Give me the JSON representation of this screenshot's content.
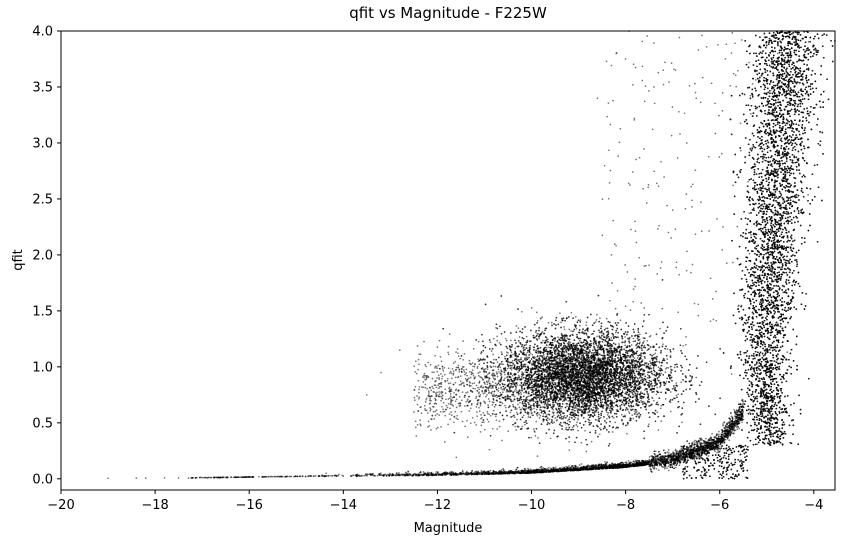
{
  "chart_data": {
    "type": "scatter",
    "title": "qfit vs Magnitude - F225W",
    "xlabel": "Magnitude",
    "ylabel": "qfit",
    "xlim": [
      -20,
      -3.55
    ],
    "ylim": [
      -0.1,
      4.0
    ],
    "x_ticks": [
      -20,
      -18,
      -16,
      -14,
      -12,
      -10,
      -8,
      -6,
      -4
    ],
    "x_tick_labels": [
      "−20",
      "−18",
      "−16",
      "−14",
      "−12",
      "−10",
      "−8",
      "−6",
      "−4"
    ],
    "y_ticks": [
      0.0,
      0.5,
      1.0,
      1.5,
      2.0,
      2.5,
      3.0,
      3.5,
      4.0
    ],
    "y_tick_labels": [
      "0.0",
      "0.5",
      "1.0",
      "1.5",
      "2.0",
      "2.5",
      "3.0",
      "3.5",
      "4.0"
    ],
    "grid": false,
    "point_color": "#000000",
    "point_opacity": 0.55,
    "features": {
      "faint_tail_sample_points": [
        [
          -19.0,
          0.005
        ],
        [
          -18.4,
          0.006
        ],
        [
          -18.2,
          0.006
        ],
        [
          -17.8,
          0.008
        ],
        [
          -17.5,
          0.008
        ],
        [
          -17.2,
          0.009
        ],
        [
          -16.9,
          0.01
        ],
        [
          -16.6,
          0.012
        ],
        [
          -16.3,
          0.013
        ],
        [
          -16.0,
          0.014
        ],
        [
          -15.6,
          0.016
        ],
        [
          -15.2,
          0.018
        ],
        [
          -14.8,
          0.02
        ],
        [
          -14.4,
          0.022
        ],
        [
          -14.0,
          0.025
        ]
      ],
      "cluster": {
        "center_x": -8.9,
        "center_y": 0.92,
        "spread_x": 1.1,
        "spread_y": 0.2
      },
      "main_sequence_curve": [
        [
          -14.0,
          0.02
        ],
        [
          -12.0,
          0.03
        ],
        [
          -10.0,
          0.05
        ],
        [
          -8.0,
          0.1
        ],
        [
          -7.0,
          0.15
        ],
        [
          -6.0,
          0.3
        ],
        [
          -5.5,
          0.55
        ],
        [
          -5.2,
          1.0
        ],
        [
          -5.0,
          1.5
        ],
        [
          -4.85,
          2.0
        ],
        [
          -4.75,
          2.5
        ],
        [
          -4.65,
          3.0
        ],
        [
          -4.55,
          3.5
        ],
        [
          -4.45,
          4.0
        ]
      ],
      "outlier_points": [
        [
          -13.5,
          0.75
        ],
        [
          -13.2,
          0.95
        ],
        [
          -12.8,
          1.15
        ],
        [
          -8.2,
          3.8
        ],
        [
          -8.0,
          3.75
        ],
        [
          -8.6,
          3.4
        ],
        [
          -7.4,
          3.5
        ],
        [
          -7.2,
          3.65
        ],
        [
          -7.8,
          2.3
        ],
        [
          -8.3,
          2.0
        ],
        [
          -7.6,
          1.9
        ],
        [
          -7.0,
          2.4
        ],
        [
          -6.7,
          3.0
        ],
        [
          -6.5,
          3.4
        ]
      ]
    }
  }
}
